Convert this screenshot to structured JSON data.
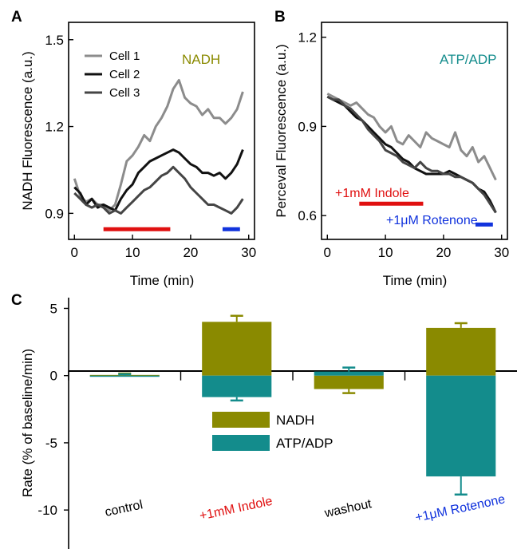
{
  "chart_data": [
    {
      "panel": "A",
      "type": "line",
      "title": "NADH",
      "title_color": "#8a8a00",
      "xlabel": "Time (min)",
      "ylabel": "NADH Fluorescence (a.u.)",
      "xlim": [
        -1,
        31
      ],
      "ylim": [
        0.81,
        1.56
      ],
      "xticks": [
        "0",
        "10",
        "20",
        "30"
      ],
      "xtick_values": [
        0,
        10,
        20,
        30
      ],
      "yticks": [
        "0.9",
        "1.2",
        "1.5"
      ],
      "ytick_values": [
        0.9,
        1.2,
        1.5
      ],
      "legend_position": "top-left",
      "series": [
        {
          "name": "Cell 1",
          "color": "#8c8c8c",
          "x": [
            0,
            1,
            2,
            3,
            4,
            5,
            6,
            7,
            8,
            9,
            10,
            11,
            12,
            13,
            14,
            15,
            16,
            17,
            18,
            19,
            20,
            21,
            22,
            23,
            24,
            25,
            26,
            27,
            28,
            29
          ],
          "y": [
            1.02,
            0.96,
            0.94,
            0.95,
            0.93,
            0.93,
            0.91,
            0.93,
            1.0,
            1.08,
            1.1,
            1.13,
            1.17,
            1.15,
            1.2,
            1.23,
            1.27,
            1.33,
            1.36,
            1.3,
            1.28,
            1.27,
            1.24,
            1.26,
            1.23,
            1.23,
            1.21,
            1.23,
            1.26,
            1.32
          ]
        },
        {
          "name": "Cell 2",
          "color": "#111111",
          "x": [
            0,
            1,
            2,
            3,
            4,
            5,
            6,
            7,
            8,
            9,
            10,
            11,
            12,
            13,
            14,
            15,
            16,
            17,
            18,
            19,
            20,
            21,
            22,
            23,
            24,
            25,
            26,
            27,
            28,
            29
          ],
          "y": [
            0.99,
            0.97,
            0.93,
            0.95,
            0.92,
            0.93,
            0.92,
            0.91,
            0.95,
            0.98,
            1.0,
            1.04,
            1.06,
            1.08,
            1.09,
            1.1,
            1.11,
            1.12,
            1.11,
            1.09,
            1.07,
            1.06,
            1.04,
            1.04,
            1.03,
            1.04,
            1.02,
            1.04,
            1.07,
            1.12
          ]
        },
        {
          "name": "Cell 3",
          "color": "#454545",
          "x": [
            0,
            1,
            2,
            3,
            4,
            5,
            6,
            7,
            8,
            9,
            10,
            11,
            12,
            13,
            14,
            15,
            16,
            17,
            18,
            19,
            20,
            21,
            22,
            23,
            24,
            25,
            26,
            27,
            28,
            29
          ],
          "y": [
            0.97,
            0.95,
            0.93,
            0.92,
            0.93,
            0.92,
            0.9,
            0.91,
            0.9,
            0.92,
            0.94,
            0.96,
            0.98,
            0.99,
            1.01,
            1.03,
            1.04,
            1.06,
            1.04,
            1.02,
            0.99,
            0.97,
            0.95,
            0.93,
            0.93,
            0.92,
            0.91,
            0.9,
            0.92,
            0.95
          ]
        }
      ],
      "bars": [
        {
          "color": "#e01010",
          "x": [
            5,
            16.5
          ],
          "y": 0.845
        },
        {
          "color": "#1133dd",
          "x": [
            25.5,
            28.5
          ],
          "y": 0.845
        }
      ]
    },
    {
      "panel": "B",
      "type": "line",
      "title": "ATP/ADP",
      "title_color": "#138c8c",
      "xlabel": "Time (min)",
      "ylabel": "Perceval Fluorescence (a.u.)",
      "xlim": [
        -1,
        31
      ],
      "ylim": [
        0.52,
        1.25
      ],
      "xticks": [
        "0",
        "10",
        "20",
        "30"
      ],
      "xtick_values": [
        0,
        10,
        20,
        30
      ],
      "yticks": [
        "0.6",
        "0.9",
        "1.2"
      ],
      "ytick_values": [
        0.6,
        0.9,
        1.2
      ],
      "annotations": [
        {
          "text": "+1mM Indole",
          "color": "#e01010"
        },
        {
          "text": "+1μM Rotenone",
          "color": "#1133dd"
        }
      ],
      "series": [
        {
          "color": "#8c8c8c",
          "x": [
            0,
            1,
            2,
            3,
            4,
            5,
            6,
            7,
            8,
            9,
            10,
            11,
            12,
            13,
            14,
            15,
            16,
            17,
            18,
            19,
            20,
            21,
            22,
            23,
            24,
            25,
            26,
            27,
            28,
            29
          ],
          "y": [
            1.01,
            1.0,
            0.99,
            0.98,
            0.97,
            0.98,
            0.96,
            0.94,
            0.93,
            0.9,
            0.88,
            0.9,
            0.85,
            0.84,
            0.87,
            0.85,
            0.83,
            0.88,
            0.86,
            0.85,
            0.84,
            0.83,
            0.88,
            0.82,
            0.8,
            0.83,
            0.78,
            0.8,
            0.76,
            0.72
          ]
        },
        {
          "color": "#111111",
          "x": [
            0,
            1,
            2,
            3,
            4,
            5,
            6,
            7,
            8,
            9,
            10,
            11,
            12,
            13,
            14,
            15,
            16,
            17,
            18,
            19,
            20,
            21,
            22,
            23,
            24,
            25,
            26,
            27,
            28,
            29
          ],
          "y": [
            1.0,
            0.99,
            0.98,
            0.97,
            0.95,
            0.93,
            0.92,
            0.9,
            0.88,
            0.86,
            0.84,
            0.83,
            0.81,
            0.79,
            0.78,
            0.76,
            0.75,
            0.74,
            0.74,
            0.74,
            0.74,
            0.75,
            0.74,
            0.73,
            0.72,
            0.71,
            0.69,
            0.68,
            0.65,
            0.61
          ]
        },
        {
          "color": "#454545",
          "x": [
            0,
            1,
            2,
            3,
            4,
            5,
            6,
            7,
            8,
            9,
            10,
            11,
            12,
            13,
            14,
            15,
            16,
            17,
            18,
            19,
            20,
            21,
            22,
            23,
            24,
            25,
            26,
            27,
            28,
            29
          ],
          "y": [
            1.0,
            0.99,
            0.99,
            0.97,
            0.96,
            0.94,
            0.92,
            0.89,
            0.87,
            0.85,
            0.82,
            0.81,
            0.8,
            0.78,
            0.77,
            0.76,
            0.78,
            0.76,
            0.75,
            0.75,
            0.74,
            0.74,
            0.73,
            0.73,
            0.72,
            0.71,
            0.69,
            0.67,
            0.64,
            0.61
          ]
        }
      ],
      "bars": [
        {
          "color": "#e01010",
          "x": [
            5.5,
            16.5
          ],
          "y": 0.64
        },
        {
          "color": "#1133dd",
          "x": [
            25.5,
            28.5
          ],
          "y": 0.57
        }
      ]
    },
    {
      "panel": "C",
      "type": "bar",
      "ylabel": "Rate (% of baseline/min)",
      "ylim": [
        -12.9,
        5.8
      ],
      "yticks": [
        "5",
        "0",
        "-5",
        "-10"
      ],
      "ytick_values": [
        5,
        0,
        -5,
        -10
      ],
      "categories": [
        "control",
        "+1mM Indole",
        "washout",
        "+1μM Rotenone"
      ],
      "category_colors": [
        "#000000",
        "#e01010",
        "#000000",
        "#1133dd"
      ],
      "legend_position": "center",
      "series": [
        {
          "name": "NADH",
          "color": "#8a8a00",
          "values": [
            0.05,
            4.0,
            -1.0,
            3.55
          ],
          "errors": [
            0.1,
            0.45,
            0.3,
            0.35
          ]
        },
        {
          "name": "ATP/ADP",
          "color": "#138c8c",
          "values": [
            0,
            -1.6,
            0.3,
            -7.5
          ],
          "errors": [
            0.1,
            0.25,
            0.3,
            1.35
          ]
        }
      ]
    }
  ]
}
